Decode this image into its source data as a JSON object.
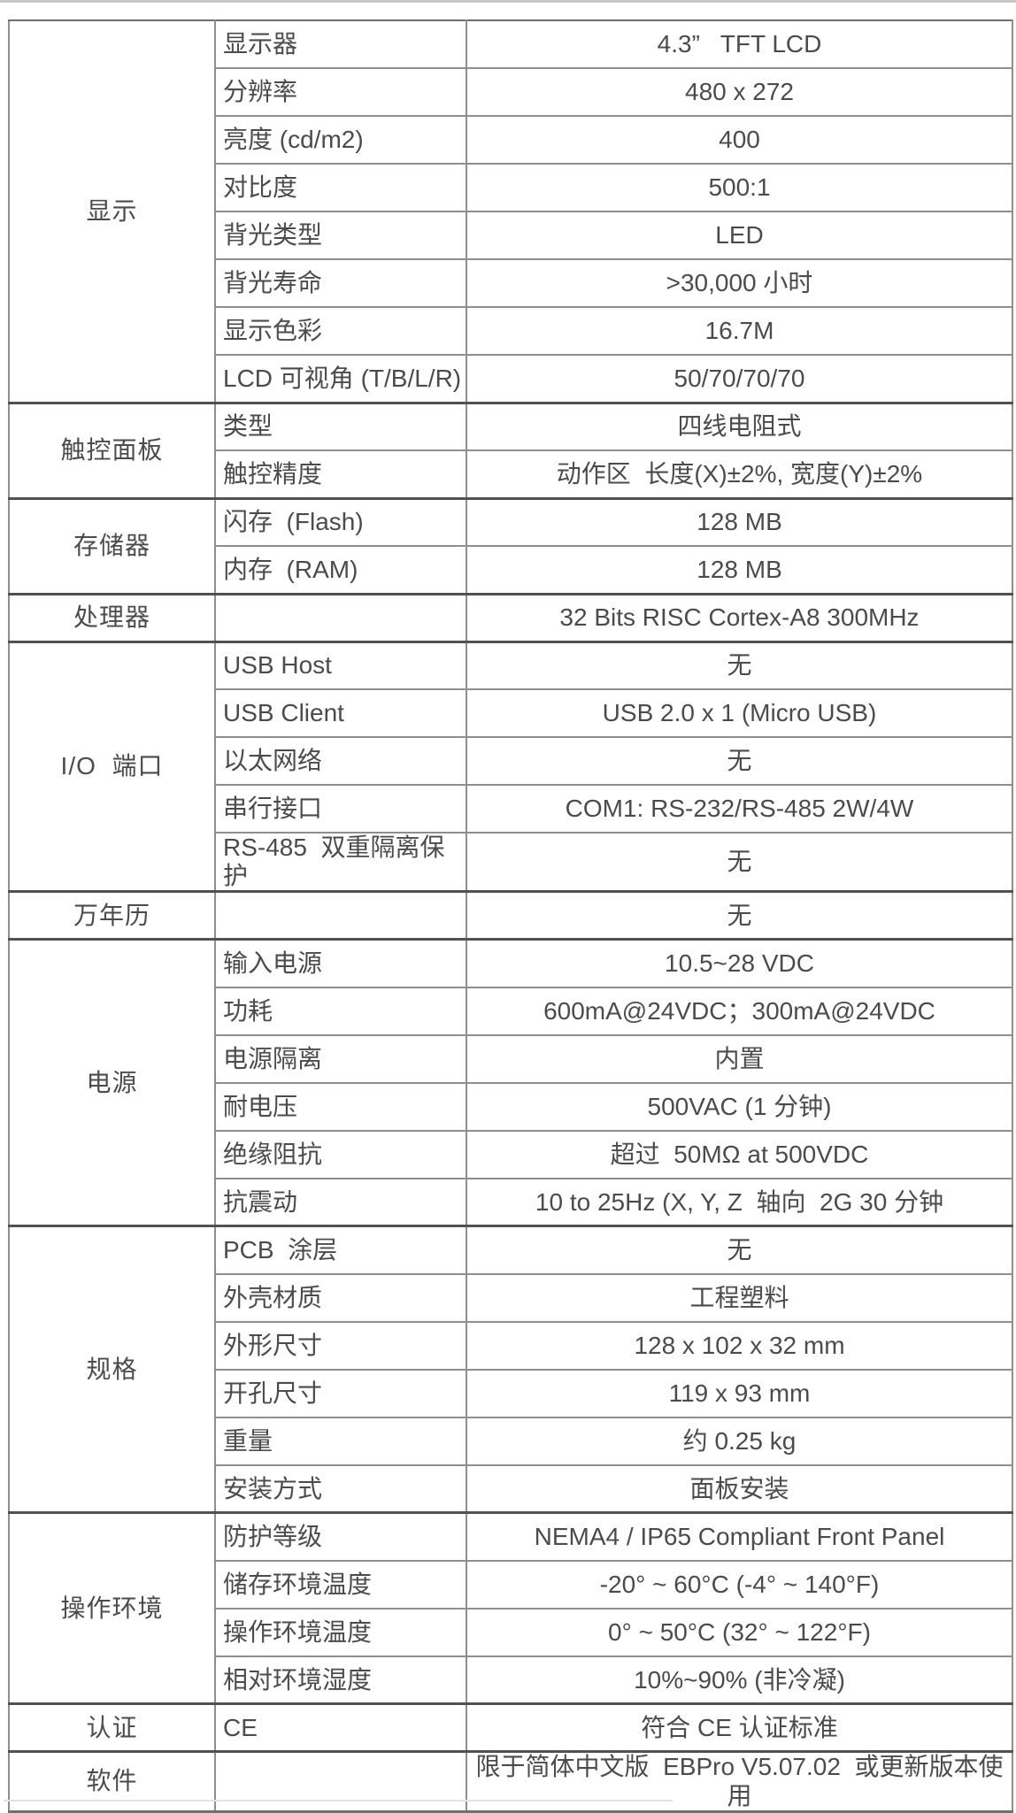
{
  "colors": {
    "text": "#4b4b4b",
    "grid_line": "#8e8e8e",
    "section_line": "#515151",
    "background": "#ffffff"
  },
  "table": {
    "sections": [
      {
        "group": "显示",
        "rows": [
          {
            "label": "显示器",
            "value": "4.3”   TFT LCD"
          },
          {
            "label": "分辨率",
            "value": "480 x 272"
          },
          {
            "label": "亮度 (cd/m2)",
            "value": "400"
          },
          {
            "label": "对比度",
            "value": "500:1"
          },
          {
            "label": "背光类型",
            "value": "LED"
          },
          {
            "label": "背光寿命",
            "value": ">30,000 小时"
          },
          {
            "label": "显示色彩",
            "value": "16.7M"
          },
          {
            "label": "LCD 可视角 (T/B/L/R)",
            "value": "50/70/70/70"
          }
        ]
      },
      {
        "group": "触控面板",
        "rows": [
          {
            "label": "类型",
            "value": "四线电阻式"
          },
          {
            "label": "触控精度",
            "value": "动作区  长度(X)±2%, 宽度(Y)±2%"
          }
        ]
      },
      {
        "group": "存储器",
        "rows": [
          {
            "label": "闪存  (Flash)",
            "value": "128 MB"
          },
          {
            "label": "内存  (RAM)",
            "value": "128 MB"
          }
        ]
      },
      {
        "group": "处理器",
        "rows": [
          {
            "label": "",
            "value": "32 Bits RISC Cortex-A8 300MHz"
          }
        ]
      },
      {
        "group": "I/O  端口",
        "rows": [
          {
            "label": "USB Host",
            "value": "无"
          },
          {
            "label": "USB Client",
            "value": "USB 2.0 x 1 (Micro USB)"
          },
          {
            "label": "以太网络",
            "value": "无"
          },
          {
            "label": "串行接口",
            "value": "COM1: RS-232/RS-485 2W/4W"
          },
          {
            "label": "RS-485  双重隔离保护",
            "value": "无"
          }
        ]
      },
      {
        "group": "万年历",
        "rows": [
          {
            "label": "",
            "value": "无"
          }
        ]
      },
      {
        "group": "电源",
        "rows": [
          {
            "label": "输入电源",
            "value": "10.5~28 VDC"
          },
          {
            "label": "功耗",
            "value": "600mA@24VDC；300mA@24VDC"
          },
          {
            "label": "电源隔离",
            "value": "内置"
          },
          {
            "label": "耐电压",
            "value": "500VAC (1 分钟)"
          },
          {
            "label": "绝缘阻抗",
            "value": "超过  50MΩ at 500VDC"
          },
          {
            "label": "抗震动",
            "value": "10 to 25Hz (X, Y, Z  轴向  2G 30 分钟"
          }
        ]
      },
      {
        "group": "规格",
        "rows": [
          {
            "label": "PCB  涂层",
            "value": "无"
          },
          {
            "label": "外壳材质",
            "value": "工程塑料"
          },
          {
            "label": "外形尺寸",
            "value": "128 x 102 x 32 mm"
          },
          {
            "label": "开孔尺寸",
            "value": "119 x 93 mm"
          },
          {
            "label": "重量",
            "value": "约 0.25 kg"
          },
          {
            "label": "安装方式",
            "value": "面板安装"
          }
        ]
      },
      {
        "group": "操作环境",
        "rows": [
          {
            "label": "防护等级",
            "value": "NEMA4 / IP65 Compliant Front Panel"
          },
          {
            "label": "储存环境温度",
            "value": "-20° ~ 60°C (-4° ~ 140°F)"
          },
          {
            "label": "操作环境温度",
            "value": "0° ~ 50°C (32° ~ 122°F)"
          },
          {
            "label": "相对环境湿度",
            "value": "10%~90% (非冷凝)"
          }
        ]
      },
      {
        "group": "认证",
        "rows": [
          {
            "label": "CE",
            "value": "符合 CE 认证标准"
          }
        ]
      },
      {
        "group": "软件",
        "rows": [
          {
            "label": "",
            "value": "限于简体中文版  EBPro V5.07.02  或更新版本使用"
          }
        ]
      }
    ]
  }
}
